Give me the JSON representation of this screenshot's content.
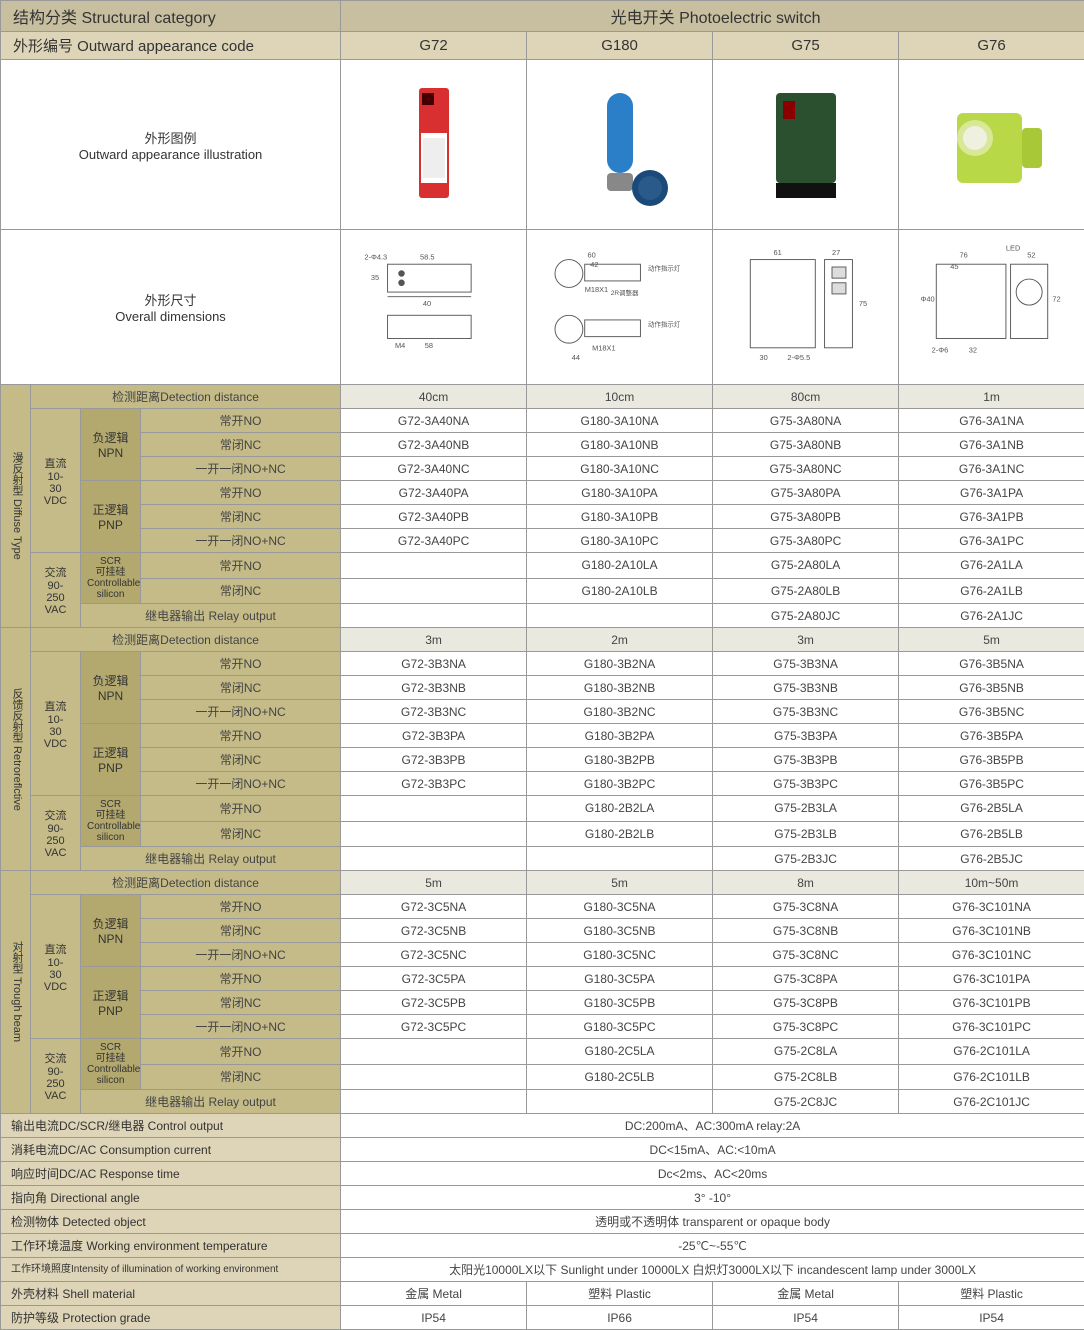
{
  "colors": {
    "header_main": "#c8bfa0",
    "header_sub": "#ded4b8",
    "olive": "#b3a96f",
    "olive_light": "#c4bb88",
    "alt_row": "#eae9e0",
    "border": "#999999",
    "text": "#333333",
    "g72_product": "#d83030",
    "g180_product": "#2a7fc8",
    "g75_product": "#2a5030",
    "g76_product": "#b8d848"
  },
  "header": {
    "struct_cat": "结构分类 Structural category",
    "photo_switch": "光电开关 Photoelectric switch",
    "outward_code": "外形编号 Outward appearance code"
  },
  "models": [
    "G72",
    "G180",
    "G75",
    "G76"
  ],
  "illus_label_cn": "外形图例",
  "illus_label_en": "Outward appearance illustration",
  "dim_label_cn": "外形尺寸",
  "dim_label_en": "Overall dimensions",
  "dim_data": {
    "g72": {
      "w": "58.5",
      "h": "35",
      "m": "M4",
      "b": "58",
      "d": "2-Φ4.3"
    },
    "g180": {
      "d1": "60",
      "d2": "42",
      "m": "M18X1",
      "h": "44",
      "t1": "动作指示灯",
      "t2": "2R调整器"
    },
    "g75": {
      "w": "61",
      "h": "75",
      "d": "27",
      "b": "30",
      "hole": "2-Φ5.5"
    },
    "g76": {
      "w": "76",
      "h": "72",
      "d1": "45",
      "d2": "52",
      "led": "LED",
      "dia": "Φ40",
      "hole": "2-Φ6",
      "b": "32"
    }
  },
  "sections": [
    {
      "name_cn": "漫反射型",
      "name_en": "Diffuse Type",
      "detect_label": "检测距离Detection distance",
      "detect": [
        "40cm",
        "10cm",
        "80cm",
        "1m"
      ],
      "groups": [
        {
          "volt": "直流\n10-\n30\nVDC",
          "logics": [
            {
              "name": "负逻辑\nNPN",
              "outputs": [
                {
                  "out": "常开NO",
                  "codes": [
                    "G72-3A40NA",
                    "G180-3A10NA",
                    "G75-3A80NA",
                    "G76-3A1NA"
                  ]
                },
                {
                  "out": "常闭NC",
                  "codes": [
                    "G72-3A40NB",
                    "G180-3A10NB",
                    "G75-3A80NB",
                    "G76-3A1NB"
                  ]
                },
                {
                  "out": "一开一闭NO+NC",
                  "codes": [
                    "G72-3A40NC",
                    "G180-3A10NC",
                    "G75-3A80NC",
                    "G76-3A1NC"
                  ]
                }
              ]
            },
            {
              "name": "正逻辑\nPNP",
              "outputs": [
                {
                  "out": "常开NO",
                  "codes": [
                    "G72-3A40PA",
                    "G180-3A10PA",
                    "G75-3A80PA",
                    "G76-3A1PA"
                  ]
                },
                {
                  "out": "常闭NC",
                  "codes": [
                    "G72-3A40PB",
                    "G180-3A10PB",
                    "G75-3A80PB",
                    "G76-3A1PB"
                  ]
                },
                {
                  "out": "一开一闭NO+NC",
                  "codes": [
                    "G72-3A40PC",
                    "G180-3A10PC",
                    "G75-3A80PC",
                    "G76-3A1PC"
                  ]
                }
              ]
            }
          ]
        },
        {
          "volt": "交流\n90-\n250\nVAC",
          "logics": [
            {
              "name": "SCR\n可挂硅\nControllable\nsilicon",
              "small": true,
              "outputs": [
                {
                  "out": "常开NO",
                  "codes": [
                    "",
                    "G180-2A10LA",
                    "G75-2A80LA",
                    "G76-2A1LA"
                  ]
                },
                {
                  "out": "常闭NC",
                  "codes": [
                    "",
                    "G180-2A10LB",
                    "G75-2A80LB",
                    "G76-2A1LB"
                  ]
                }
              ]
            }
          ],
          "relay": {
            "label": "继电器输出 Relay output",
            "codes": [
              "",
              "",
              "G75-2A80JC",
              "G76-2A1JC"
            ]
          }
        }
      ]
    },
    {
      "name_cn": "反馈反射型",
      "name_en": "Retroreflctive",
      "detect_label": "检测距离Detection distance",
      "detect": [
        "3m",
        "2m",
        "3m",
        "5m"
      ],
      "groups": [
        {
          "volt": "直流\n10-\n30\nVDC",
          "logics": [
            {
              "name": "负逻辑\nNPN",
              "outputs": [
                {
                  "out": "常开NO",
                  "codes": [
                    "G72-3B3NA",
                    "G180-3B2NA",
                    "G75-3B3NA",
                    "G76-3B5NA"
                  ]
                },
                {
                  "out": "常闭NC",
                  "codes": [
                    "G72-3B3NB",
                    "G180-3B2NB",
                    "G75-3B3NB",
                    "G76-3B5NB"
                  ]
                },
                {
                  "out": "一开一闭NO+NC",
                  "codes": [
                    "G72-3B3NC",
                    "G180-3B2NC",
                    "G75-3B3NC",
                    "G76-3B5NC"
                  ]
                }
              ]
            },
            {
              "name": "正逻辑\nPNP",
              "outputs": [
                {
                  "out": "常开NO",
                  "codes": [
                    "G72-3B3PA",
                    "G180-3B2PA",
                    "G75-3B3PA",
                    "G76-3B5PA"
                  ]
                },
                {
                  "out": "常闭NC",
                  "codes": [
                    "G72-3B3PB",
                    "G180-3B2PB",
                    "G75-3B3PB",
                    "G76-3B5PB"
                  ]
                },
                {
                  "out": "一开一闭NO+NC",
                  "codes": [
                    "G72-3B3PC",
                    "G180-3B2PC",
                    "G75-3B3PC",
                    "G76-3B5PC"
                  ]
                }
              ]
            }
          ]
        },
        {
          "volt": "交流\n90-\n250\nVAC",
          "logics": [
            {
              "name": "SCR\n可挂硅\nControllable\nsilicon",
              "small": true,
              "outputs": [
                {
                  "out": "常开NO",
                  "codes": [
                    "",
                    "G180-2B2LA",
                    "G75-2B3LA",
                    "G76-2B5LA"
                  ]
                },
                {
                  "out": "常闭NC",
                  "codes": [
                    "",
                    "G180-2B2LB",
                    "G75-2B3LB",
                    "G76-2B5LB"
                  ]
                }
              ]
            }
          ],
          "relay": {
            "label": "继电器输出 Relay output",
            "codes": [
              "",
              "",
              "G75-2B3JC",
              "G76-2B5JC"
            ]
          }
        }
      ]
    },
    {
      "name_cn": "对射型",
      "name_en": "Trough beam",
      "detect_label": "检测距离Detection distance",
      "detect": [
        "5m",
        "5m",
        "8m",
        "10m~50m"
      ],
      "groups": [
        {
          "volt": "直流\n10-\n30\nVDC",
          "logics": [
            {
              "name": "负逻辑\nNPN",
              "outputs": [
                {
                  "out": "常开NO",
                  "codes": [
                    "G72-3C5NA",
                    "G180-3C5NA",
                    "G75-3C8NA",
                    "G76-3C101NA"
                  ]
                },
                {
                  "out": "常闭NC",
                  "codes": [
                    "G72-3C5NB",
                    "G180-3C5NB",
                    "G75-3C8NB",
                    "G76-3C101NB"
                  ]
                },
                {
                  "out": "一开一闭NO+NC",
                  "codes": [
                    "G72-3C5NC",
                    "G180-3C5NC",
                    "G75-3C8NC",
                    "G76-3C101NC"
                  ]
                }
              ]
            },
            {
              "name": "正逻辑\nPNP",
              "outputs": [
                {
                  "out": "常开NO",
                  "codes": [
                    "G72-3C5PA",
                    "G180-3C5PA",
                    "G75-3C8PA",
                    "G76-3C101PA"
                  ]
                },
                {
                  "out": "常闭NC",
                  "codes": [
                    "G72-3C5PB",
                    "G180-3C5PB",
                    "G75-3C8PB",
                    "G76-3C101PB"
                  ]
                },
                {
                  "out": "一开一闭NO+NC",
                  "codes": [
                    "G72-3C5PC",
                    "G180-3C5PC",
                    "G75-3C8PC",
                    "G76-3C101PC"
                  ]
                }
              ]
            }
          ]
        },
        {
          "volt": "交流\n90-\n250\nVAC",
          "logics": [
            {
              "name": "SCR\n可挂硅\nControllable\nsilicon",
              "small": true,
              "outputs": [
                {
                  "out": "常开NO",
                  "codes": [
                    "",
                    "G180-2C5LA",
                    "G75-2C8LA",
                    "G76-2C101LA"
                  ]
                },
                {
                  "out": "常闭NC",
                  "codes": [
                    "",
                    "G180-2C5LB",
                    "G75-2C8LB",
                    "G76-2C101LB"
                  ]
                }
              ]
            }
          ],
          "relay": {
            "label": "继电器输出 Relay output",
            "codes": [
              "",
              "",
              "G75-2C8JC",
              "G76-2C101JC"
            ]
          }
        }
      ]
    }
  ],
  "params": [
    {
      "label": "输出电流DC/SCR/继电器 Control output",
      "val": "DC:200mA、AC:300mA relay:2A"
    },
    {
      "label": "消耗电流DC/AC Consumption current",
      "val": "DC<15mA、AC:<10mA"
    },
    {
      "label": "响应时间DC/AC Response time",
      "val": "Dc<2ms、AC<20ms"
    },
    {
      "label": "指向角 Directional angle",
      "val": "3° -10°"
    },
    {
      "label": "检测物体 Detected object",
      "val": "透明或不透明体 transparent or opaque body"
    },
    {
      "label": "工作环境温度 Working environment temperature",
      "val": "-25℃~-55℃"
    },
    {
      "label": "工作环境照度Intensity of illumination of working environment",
      "small": true,
      "val": "太阳光10000LX以下 Sunlight under 10000LX 白炽灯3000LX以下 incandescent lamp under 3000LX"
    },
    {
      "label": "外壳材料 Shell material",
      "vals": [
        "金属 Metal",
        "塑料 Plastic",
        "金属 Metal",
        "塑料 Plastic"
      ]
    },
    {
      "label": "防护等级 Protection grade",
      "vals": [
        "IP54",
        "IP66",
        "IP54",
        "IP54"
      ]
    }
  ]
}
